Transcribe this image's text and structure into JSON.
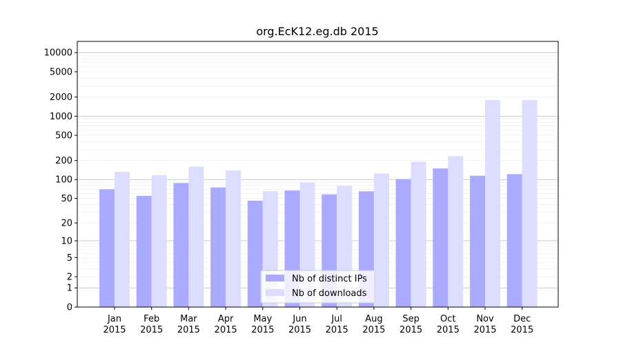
{
  "chart_data": {
    "type": "bar",
    "title": "org.EcK12.eg.db 2015",
    "xlabel": "",
    "ylabel": "",
    "y_scale": "symlog",
    "ylim": [
      0,
      15000
    ],
    "y_ticks": [
      0,
      1,
      2,
      5,
      10,
      20,
      50,
      100,
      200,
      500,
      1000,
      2000,
      5000,
      10000
    ],
    "categories": [
      [
        "Jan",
        "2015"
      ],
      [
        "Feb",
        "2015"
      ],
      [
        "Mar",
        "2015"
      ],
      [
        "Apr",
        "2015"
      ],
      [
        "May",
        "2015"
      ],
      [
        "Jun",
        "2015"
      ],
      [
        "Jul",
        "2015"
      ],
      [
        "Aug",
        "2015"
      ],
      [
        "Sep",
        "2015"
      ],
      [
        "Oct",
        "2015"
      ],
      [
        "Nov",
        "2015"
      ],
      [
        "Dec",
        "2015"
      ]
    ],
    "series": [
      {
        "name": "Nb of distinct IPs",
        "color": "#aaaaff",
        "values": [
          70,
          55,
          88,
          75,
          46,
          67,
          58,
          65,
          102,
          150,
          115,
          122
        ]
      },
      {
        "name": "Nb of downloads",
        "color": "#ddddff",
        "values": [
          133,
          117,
          160,
          140,
          65,
          90,
          80,
          125,
          192,
          235,
          1800,
          1800
        ]
      }
    ],
    "grid": true,
    "legend_position": "bottom-center"
  }
}
